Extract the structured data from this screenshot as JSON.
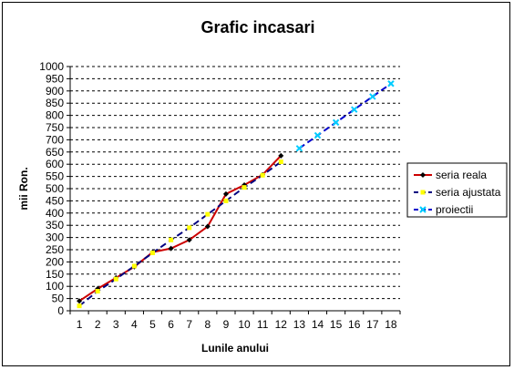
{
  "chart_data": {
    "type": "line",
    "title": "Grafic incasari",
    "xlabel": "Lunile anului",
    "ylabel": "mii Ron.",
    "x": [
      1,
      2,
      3,
      4,
      5,
      6,
      7,
      8,
      9,
      10,
      11,
      12,
      13,
      14,
      15,
      16,
      17,
      18
    ],
    "xlim": [
      1,
      18
    ],
    "ylim": [
      0,
      1000
    ],
    "ytick_step": 50,
    "grid": "horizontal dashed",
    "legend_position": "right",
    "series": [
      {
        "name": "seria reala",
        "color": "#cc0000",
        "marker_color": "#000000",
        "marker": "diamond",
        "x": [
          1,
          2,
          3,
          4,
          5,
          6,
          7,
          8,
          9,
          10,
          11,
          12
        ],
        "values": [
          40,
          90,
          135,
          180,
          240,
          255,
          290,
          345,
          478,
          515,
          557,
          635
        ]
      },
      {
        "name": "seria ajustata",
        "color": "#000080",
        "marker_color": "#ffff00",
        "marker": "square",
        "line_style": "dashed",
        "x": [
          1,
          2,
          3,
          4,
          5,
          6,
          7,
          8,
          9,
          10,
          11,
          12
        ],
        "values": [
          20,
          80,
          130,
          183,
          237,
          290,
          340,
          395,
          450,
          505,
          555,
          610
        ]
      },
      {
        "name": "proiectii",
        "color": "#0000cc",
        "marker_color": "#00ccff",
        "marker": "x",
        "line_style": "dashed",
        "x": [
          13,
          14,
          15,
          16,
          17,
          18
        ],
        "values": [
          665,
          718,
          771,
          824,
          877,
          930
        ]
      }
    ]
  }
}
